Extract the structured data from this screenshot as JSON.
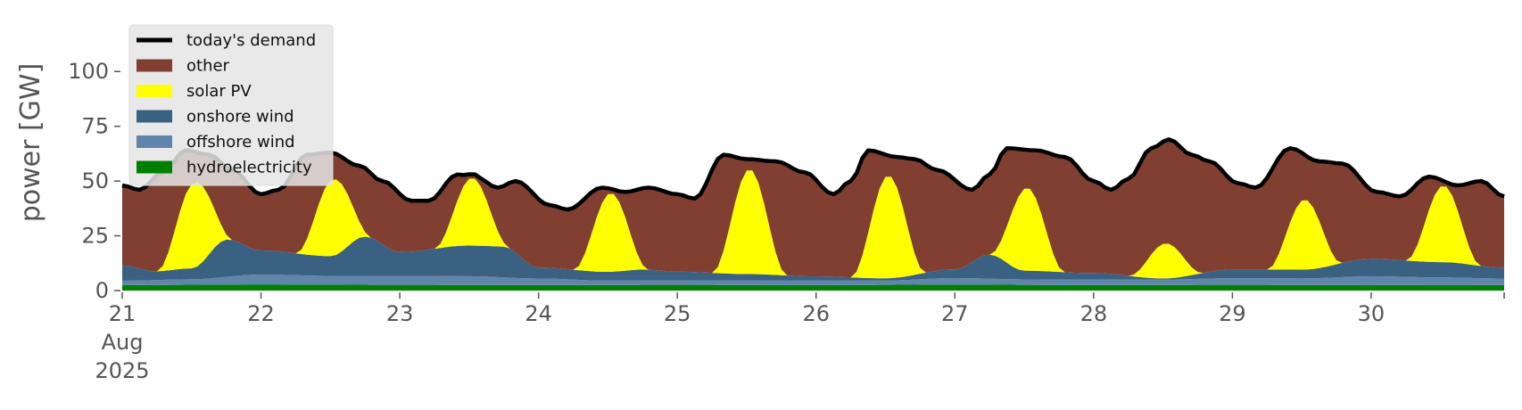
{
  "chart_data": {
    "type": "area",
    "ylabel": "power [GW]",
    "ylim": [
      0,
      118
    ],
    "xlim": [
      "2025-08-21T00:00",
      "2025-08-30T23:00"
    ],
    "grid": false,
    "legend_position": "top-left",
    "x_ticks": [
      {
        "date": "2025-08-21",
        "label": "21",
        "sub": [
          "Aug",
          "2025"
        ]
      },
      {
        "date": "2025-08-22",
        "label": "22"
      },
      {
        "date": "2025-08-23",
        "label": "23"
      },
      {
        "date": "2025-08-24",
        "label": "24"
      },
      {
        "date": "2025-08-25",
        "label": "25"
      },
      {
        "date": "2025-08-26",
        "label": "26"
      },
      {
        "date": "2025-08-27",
        "label": "27"
      },
      {
        "date": "2025-08-28",
        "label": "28"
      },
      {
        "date": "2025-08-29",
        "label": "29"
      },
      {
        "date": "2025-08-30",
        "label": "30"
      }
    ],
    "y_ticks": [
      0,
      25,
      50,
      75,
      100
    ],
    "legend": [
      {
        "label": "today's demand",
        "kind": "line",
        "color": "#000000"
      },
      {
        "label": "other",
        "kind": "area",
        "color": "#813f31"
      },
      {
        "label": "solar PV",
        "kind": "area",
        "color": "#ffff00"
      },
      {
        "label": "onshore wind",
        "kind": "area",
        "color": "#3b6182"
      },
      {
        "label": "offshore wind",
        "kind": "area",
        "color": "#6085ab"
      },
      {
        "label": "hydroelectricity",
        "kind": "area",
        "color": "#008000"
      }
    ],
    "series": [
      {
        "name": "hydroelectricity",
        "color": "#008000",
        "points": [
          [
            "2025-08-21T00:00",
            2.5
          ],
          [
            "2025-08-22T00:00",
            2.8
          ],
          [
            "2025-08-23T00:00",
            2.6
          ],
          [
            "2025-08-24T00:00",
            2.5
          ],
          [
            "2025-08-25T00:00",
            2.6
          ],
          [
            "2025-08-26T00:00",
            2.5
          ],
          [
            "2025-08-27T00:00",
            2.7
          ],
          [
            "2025-08-28T00:00",
            2.5
          ],
          [
            "2025-08-29T00:00",
            2.6
          ],
          [
            "2025-08-30T00:00",
            2.5
          ],
          [
            "2025-08-30T23:00",
            2.5
          ]
        ]
      },
      {
        "name": "offshore wind",
        "color": "#6085ab",
        "points": [
          [
            "2025-08-21T00:00",
            2
          ],
          [
            "2025-08-21T12:00",
            2.5
          ],
          [
            "2025-08-22T00:00",
            4.5
          ],
          [
            "2025-08-22T12:00",
            4
          ],
          [
            "2025-08-23T00:00",
            4
          ],
          [
            "2025-08-23T12:00",
            4
          ],
          [
            "2025-08-24T00:00",
            3
          ],
          [
            "2025-08-24T12:00",
            2
          ],
          [
            "2025-08-25T00:00",
            2
          ],
          [
            "2025-08-25T12:00",
            2
          ],
          [
            "2025-08-26T00:00",
            2
          ],
          [
            "2025-08-26T12:00",
            2
          ],
          [
            "2025-08-27T00:00",
            3
          ],
          [
            "2025-08-27T12:00",
            2.5
          ],
          [
            "2025-08-28T00:00",
            2.5
          ],
          [
            "2025-08-28T12:00",
            2.5
          ],
          [
            "2025-08-29T00:00",
            3
          ],
          [
            "2025-08-29T12:00",
            3
          ],
          [
            "2025-08-30T00:00",
            4
          ],
          [
            "2025-08-30T12:00",
            3.5
          ],
          [
            "2025-08-30T23:00",
            3
          ]
        ]
      },
      {
        "name": "onshore wind",
        "color": "#3b6182",
        "points": [
          [
            "2025-08-21T00:00",
            7
          ],
          [
            "2025-08-21T06:00",
            4
          ],
          [
            "2025-08-21T12:00",
            5
          ],
          [
            "2025-08-21T18:00",
            17
          ],
          [
            "2025-08-22T00:00",
            11
          ],
          [
            "2025-08-22T12:00",
            9
          ],
          [
            "2025-08-22T18:00",
            18
          ],
          [
            "2025-08-23T00:00",
            11
          ],
          [
            "2025-08-23T12:00",
            14
          ],
          [
            "2025-08-23T18:00",
            14
          ],
          [
            "2025-08-24T00:00",
            5
          ],
          [
            "2025-08-24T12:00",
            4
          ],
          [
            "2025-08-24T18:00",
            5
          ],
          [
            "2025-08-25T00:00",
            4
          ],
          [
            "2025-08-25T12:00",
            3
          ],
          [
            "2025-08-26T00:00",
            2
          ],
          [
            "2025-08-26T12:00",
            1
          ],
          [
            "2025-08-27T00:00",
            4
          ],
          [
            "2025-08-27T06:00",
            11
          ],
          [
            "2025-08-27T12:00",
            4
          ],
          [
            "2025-08-28T00:00",
            3
          ],
          [
            "2025-08-28T12:00",
            0.5
          ],
          [
            "2025-08-29T00:00",
            4
          ],
          [
            "2025-08-29T12:00",
            4
          ],
          [
            "2025-08-30T00:00",
            8
          ],
          [
            "2025-08-30T12:00",
            7
          ],
          [
            "2025-08-30T23:00",
            5
          ]
        ]
      },
      {
        "name": "solar PV",
        "color": "#ffff00",
        "peaks": [
          {
            "date": "2025-08-21",
            "peak": 39
          },
          {
            "date": "2025-08-22",
            "peak": 35
          },
          {
            "date": "2025-08-23",
            "peak": 31
          },
          {
            "date": "2025-08-24",
            "peak": 36
          },
          {
            "date": "2025-08-25",
            "peak": 48
          },
          {
            "date": "2025-08-26",
            "peak": 47
          },
          {
            "date": "2025-08-27",
            "peak": 38
          },
          {
            "date": "2025-08-28",
            "peak": 16
          },
          {
            "date": "2025-08-29",
            "peak": 32
          },
          {
            "date": "2025-08-30",
            "peak": 35
          }
        ]
      },
      {
        "name": "today's demand",
        "color": "#000000",
        "points": [
          [
            "2025-08-21T00:00",
            48
          ],
          [
            "2025-08-21T03:00",
            46
          ],
          [
            "2025-08-21T07:00",
            54
          ],
          [
            "2025-08-21T11:00",
            64
          ],
          [
            "2025-08-21T15:00",
            62
          ],
          [
            "2025-08-21T19:00",
            55
          ],
          [
            "2025-08-22T00:00",
            44
          ],
          [
            "2025-08-22T03:00",
            46
          ],
          [
            "2025-08-22T08:00",
            62
          ],
          [
            "2025-08-22T12:00",
            63
          ],
          [
            "2025-08-22T17:00",
            57
          ],
          [
            "2025-08-22T21:00",
            50
          ],
          [
            "2025-08-23T02:00",
            41
          ],
          [
            "2025-08-23T05:00",
            41
          ],
          [
            "2025-08-23T10:00",
            53
          ],
          [
            "2025-08-23T13:00",
            52
          ],
          [
            "2025-08-23T17:00",
            47
          ],
          [
            "2025-08-23T20:00",
            50
          ],
          [
            "2025-08-24T02:00",
            39
          ],
          [
            "2025-08-24T05:00",
            37
          ],
          [
            "2025-08-24T11:00",
            47
          ],
          [
            "2025-08-24T15:00",
            45
          ],
          [
            "2025-08-24T19:00",
            47
          ],
          [
            "2025-08-25T00:00",
            44
          ],
          [
            "2025-08-25T03:00",
            42
          ],
          [
            "2025-08-25T08:00",
            62
          ],
          [
            "2025-08-25T12:00",
            60
          ],
          [
            "2025-08-25T17:00",
            59
          ],
          [
            "2025-08-25T22:00",
            54
          ],
          [
            "2025-08-26T03:00",
            44
          ],
          [
            "2025-08-26T06:00",
            50
          ],
          [
            "2025-08-26T09:00",
            64
          ],
          [
            "2025-08-26T14:00",
            61
          ],
          [
            "2025-08-26T17:00",
            60
          ],
          [
            "2025-08-26T21:00",
            55
          ],
          [
            "2025-08-27T03:00",
            46
          ],
          [
            "2025-08-27T06:00",
            53
          ],
          [
            "2025-08-27T09:00",
            65
          ],
          [
            "2025-08-27T14:00",
            64
          ],
          [
            "2025-08-27T19:00",
            61
          ],
          [
            "2025-08-28T00:00",
            50
          ],
          [
            "2025-08-28T03:00",
            46
          ],
          [
            "2025-08-28T06:00",
            51
          ],
          [
            "2025-08-28T10:00",
            65
          ],
          [
            "2025-08-28T13:00",
            69
          ],
          [
            "2025-08-28T17:00",
            62
          ],
          [
            "2025-08-28T20:00",
            59
          ],
          [
            "2025-08-29T01:00",
            49
          ],
          [
            "2025-08-29T04:00",
            47
          ],
          [
            "2025-08-29T10:00",
            65
          ],
          [
            "2025-08-29T15:00",
            59
          ],
          [
            "2025-08-29T19:00",
            58
          ],
          [
            "2025-08-30T01:00",
            45
          ],
          [
            "2025-08-30T05:00",
            43
          ],
          [
            "2025-08-30T10:00",
            52
          ],
          [
            "2025-08-30T15:00",
            48
          ],
          [
            "2025-08-30T19:00",
            50
          ],
          [
            "2025-08-30T23:00",
            43
          ]
        ]
      }
    ]
  }
}
